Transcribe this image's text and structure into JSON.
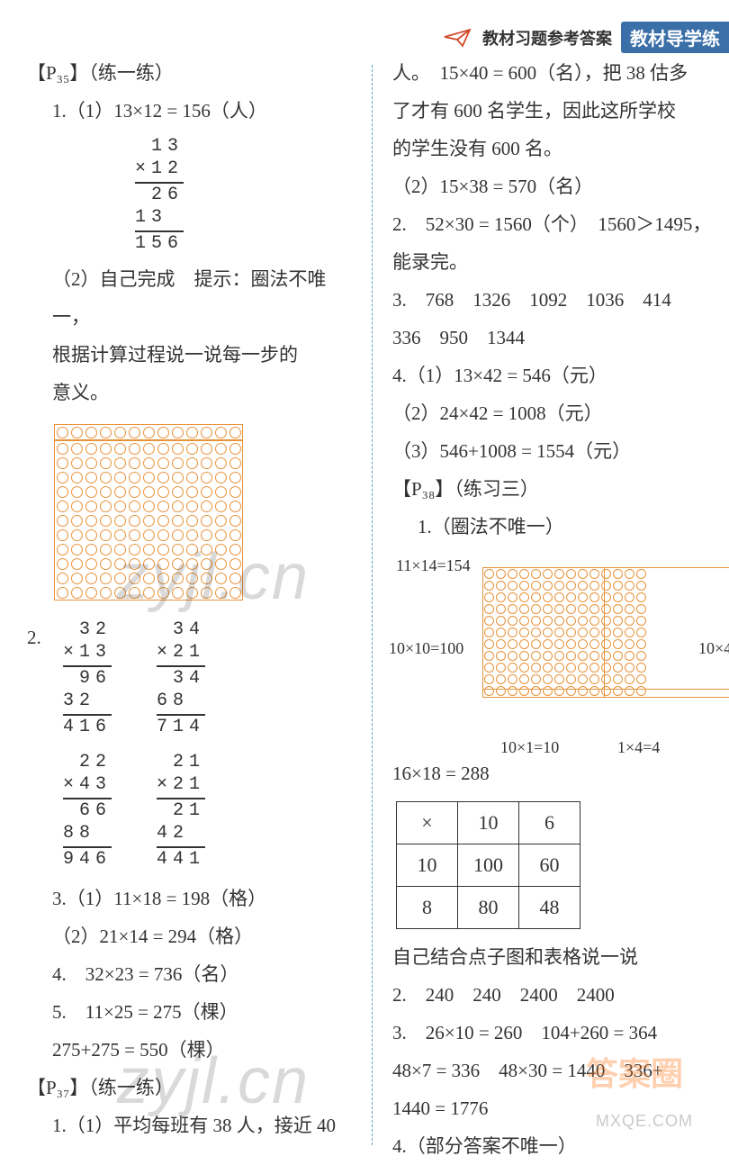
{
  "header": {
    "sub": "教材习题参考答案",
    "badge": "教材导学练"
  },
  "left": {
    "s1_title": "【P₃₅】（练一练）",
    "s1_1": "1.（1）13×12 = 156（人）",
    "mul1": {
      "a": "13",
      "b": "×12",
      "p1": "26",
      "p2": "13 ",
      "sum": "156"
    },
    "s1_2a": "（2）自己完成　提示：圈法不唯一，",
    "s1_2b": "根据计算过程说一说每一步的",
    "s1_2c": "意义。",
    "grid1": {
      "cols": 13,
      "rows": 12,
      "top_strip_rows": 1,
      "color": "#e8933b"
    },
    "s2_label": "2.",
    "mul2_1": {
      "a": "32",
      "b": "×13",
      "p1": "96",
      "p2": "32 ",
      "sum": "416"
    },
    "mul2_2": {
      "a": "34",
      "b": "×21",
      "p1": "34",
      "p2": "68 ",
      "sum": "714"
    },
    "mul2_3": {
      "a": "22",
      "b": "×43",
      "p1": "66",
      "p2": "88 ",
      "sum": "946"
    },
    "mul2_4": {
      "a": "21",
      "b": "×21",
      "p1": "21",
      "p2": "42 ",
      "sum": "441"
    },
    "s3": "3.（1）11×18 = 198（格）",
    "s3b": "（2）21×14 = 294（格）",
    "s4": "4.　32×23 = 736（名）",
    "s5": "5.　11×25 = 275（棵）",
    "s5b": "275+275 = 550（棵）",
    "s6_title": "【P₃₇】（练一练）",
    "s6_1": "1.（1）平均每班有 38 人，接近 40"
  },
  "right": {
    "r1": "人。　15×40 = 600（名），把 38 估多",
    "r2": "了才有 600 名学生，因此这所学校",
    "r3": "的学生没有 600 名。",
    "r4": "（2）15×38 = 570（名）",
    "r5": "2.　52×30 = 1560（个）　1560＞1495，",
    "r5b": "能录完。",
    "r6": "3.　768　1326　1092　1036　414",
    "r6b": "336　950　1344",
    "r7": "4.（1）13×42 = 546（元）",
    "r7b": "（2）24×42 = 1008（元）",
    "r7c": "（3）546+1008 = 1554（元）",
    "s2_title": "【P₃₈】（练习三）",
    "s2_1": "1.（圈法不唯一）",
    "g_lbl_tl": "11×14=154",
    "g_lbl_l": "10×10=100",
    "g_lbl_r": "10×4",
    "g_lbl_b1": "10×1=10",
    "g_lbl_b2": "1×4=4",
    "grid2": {
      "cols": 14,
      "rows": 11,
      "vline_after_col": 10,
      "hline_after_row": 10,
      "color": "#e8933b"
    },
    "s2_2": "16×18 = 288",
    "table": {
      "rows": [
        [
          "×",
          "10",
          "6"
        ],
        [
          "10",
          "100",
          "60"
        ],
        [
          "8",
          "80",
          "48"
        ]
      ]
    },
    "s2_3": "自己结合点子图和表格说一说",
    "s2_4": "2.　240　240　2400　2400",
    "s2_5": "3.　26×10 = 260　104+260 = 364",
    "s2_5b": "48×7 = 336　48×30 = 1440　336+",
    "s2_5c": "1440 = 1776",
    "s2_6": "4.（部分答案不唯一）"
  },
  "watermarks": {
    "w1": "zyjl.cn",
    "w2": "zyjl.cn",
    "stamp": "答案圈",
    "url": "MXQE.COM"
  }
}
